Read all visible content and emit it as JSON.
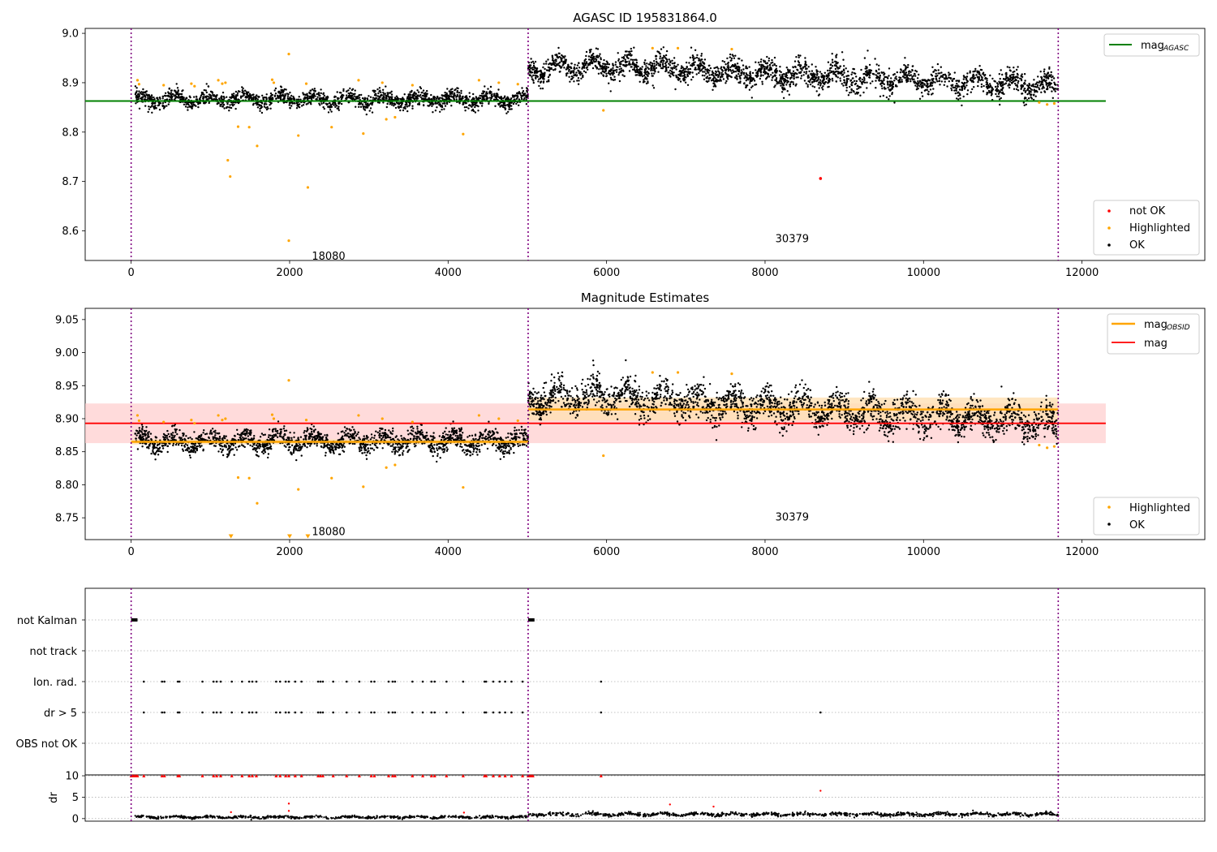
{
  "colors": {
    "ok": "#000000",
    "highlighted": "#ffa500",
    "not_ok": "#ff0000",
    "agasc_line": "#008000",
    "mag_line": "#ff0000",
    "mag_obsid_line": "#ffa500",
    "mag_band": "#ffcccc",
    "obsid_band": "#ffe0b3",
    "obs_boundary": "#800080",
    "grid": "#b0b0b0"
  },
  "chart_data": [
    {
      "type": "scatter",
      "title": "AGASC ID 195831864.0",
      "xlabel": "",
      "ylabel": "",
      "xlim": [
        -580,
        13550
      ],
      "ylim": [
        8.54,
        9.01
      ],
      "x_ticks": [
        0,
        2000,
        4000,
        6000,
        8000,
        10000,
        12000
      ],
      "y_ticks": [
        8.6,
        8.7,
        8.8,
        8.9,
        9.0
      ],
      "observation_boundaries": [
        0,
        5010,
        11700
      ],
      "observations": [
        {
          "obsid": "18080",
          "x_start": 0,
          "x_end": 5010,
          "label_at": [
            2280,
            8.55
          ]
        },
        {
          "obsid": "30379",
          "x_start": 5010,
          "x_end": 11700,
          "label_at": [
            8130,
            8.585
          ]
        }
      ],
      "reference_lines": [
        {
          "name": "mag_{AGASC}",
          "legend_label_main": "mag",
          "legend_label_sub": "AGASC",
          "y": 8.863,
          "x": [
            -580,
            12300
          ]
        }
      ],
      "series": [
        {
          "name": "OK",
          "kind": "dense-scatter",
          "segments": [
            {
              "x": [
                50,
                5010
              ],
              "center": 8.866,
              "spread": 0.014
            },
            {
              "x": [
                5010,
                11700
              ],
              "center": [
                8.926,
                8.935,
                8.93,
                8.92,
                8.915,
                8.91,
                8.905,
                8.9,
                8.892
              ],
              "spread": 0.022
            }
          ]
        },
        {
          "name": "Highlighted",
          "kind": "points",
          "points": [
            [
              80,
              8.905
            ],
            [
              100,
              8.897
            ],
            [
              410,
              8.895
            ],
            [
              760,
              8.898
            ],
            [
              800,
              8.893
            ],
            [
              1100,
              8.905
            ],
            [
              1150,
              8.898
            ],
            [
              1190,
              8.9
            ],
            [
              1220,
              8.743
            ],
            [
              1250,
              8.71
            ],
            [
              1350,
              8.811
            ],
            [
              1490,
              8.81
            ],
            [
              1590,
              8.772
            ],
            [
              1780,
              8.906
            ],
            [
              1800,
              8.9
            ],
            [
              1990,
              8.958
            ],
            [
              1990,
              8.58
            ],
            [
              2110,
              8.793
            ],
            [
              2210,
              8.898
            ],
            [
              2230,
              8.688
            ],
            [
              2530,
              8.81
            ],
            [
              2870,
              8.905
            ],
            [
              2930,
              8.797
            ],
            [
              3170,
              8.9
            ],
            [
              3220,
              8.826
            ],
            [
              3330,
              8.83
            ],
            [
              3550,
              8.895
            ],
            [
              4190,
              8.796
            ],
            [
              4390,
              8.905
            ],
            [
              4640,
              8.9
            ],
            [
              4880,
              8.897
            ],
            [
              5960,
              8.844
            ],
            [
              6580,
              8.97
            ],
            [
              6900,
              8.97
            ],
            [
              7580,
              8.968
            ],
            [
              11460,
              8.86
            ],
            [
              11560,
              8.856
            ],
            [
              11650,
              8.858
            ]
          ]
        },
        {
          "name": "not OK",
          "kind": "points",
          "points": [
            [
              8700,
              8.706
            ]
          ]
        }
      ],
      "legend": {
        "placement": "lower right",
        "entries": [
          "not OK",
          "Highlighted",
          "OK"
        ]
      },
      "line_legend": {
        "placement": "upper right"
      }
    },
    {
      "type": "scatter",
      "title": "Magnitude Estimates",
      "xlabel": "",
      "ylabel": "",
      "xlim": [
        -580,
        13550
      ],
      "ylim": [
        8.717,
        9.067
      ],
      "x_ticks": [
        0,
        2000,
        4000,
        6000,
        8000,
        10000,
        12000
      ],
      "y_ticks": [
        8.75,
        8.8,
        8.85,
        8.9,
        8.95,
        9.0,
        9.05
      ],
      "observation_boundaries": [
        0,
        5010,
        11700
      ],
      "observations": [
        {
          "obsid": "18080",
          "label_at": [
            2280,
            8.73
          ]
        },
        {
          "obsid": "30379",
          "label_at": [
            8130,
            8.752
          ]
        }
      ],
      "reference_lines": [
        {
          "name": "mag",
          "legend_label_main": "mag",
          "y": 8.893,
          "x": [
            -580,
            12300
          ],
          "band": [
            8.863,
            8.923
          ]
        },
        {
          "name": "mag_{OBSID}",
          "legend_label_main": "mag",
          "legend_label_sub": "OBSID",
          "segments": [
            {
              "x": [
                0,
                5010
              ],
              "y": 8.865,
              "band": [
                8.861,
                8.869
              ]
            },
            {
              "x": [
                5010,
                11700
              ],
              "y": 8.914,
              "band": [
                8.897,
                8.932
              ]
            }
          ]
        }
      ],
      "series": [
        {
          "name": "OK",
          "kind": "dense-scatter",
          "segments": [
            {
              "x": [
                50,
                5010
              ],
              "center": 8.866,
              "spread": 0.014
            },
            {
              "x": [
                5010,
                11700
              ],
              "center": [
                8.926,
                8.935,
                8.93,
                8.92,
                8.915,
                8.91,
                8.905,
                8.9,
                8.892
              ],
              "spread": 0.022
            }
          ]
        },
        {
          "name": "Highlighted",
          "kind": "points",
          "points": [
            [
              80,
              8.905
            ],
            [
              100,
              8.897
            ],
            [
              410,
              8.895
            ],
            [
              760,
              8.898
            ],
            [
              800,
              8.893
            ],
            [
              1100,
              8.905
            ],
            [
              1150,
              8.898
            ],
            [
              1190,
              8.9
            ],
            [
              1350,
              8.811
            ],
            [
              1490,
              8.81
            ],
            [
              1590,
              8.772
            ],
            [
              1780,
              8.906
            ],
            [
              1800,
              8.9
            ],
            [
              1990,
              8.958
            ],
            [
              2110,
              8.793
            ],
            [
              2210,
              8.898
            ],
            [
              2530,
              8.81
            ],
            [
              2870,
              8.905
            ],
            [
              2930,
              8.797
            ],
            [
              3170,
              8.9
            ],
            [
              3220,
              8.826
            ],
            [
              3330,
              8.83
            ],
            [
              3550,
              8.895
            ],
            [
              4190,
              8.796
            ],
            [
              4390,
              8.905
            ],
            [
              4640,
              8.9
            ],
            [
              4880,
              8.897
            ],
            [
              5960,
              8.844
            ],
            [
              6580,
              8.97
            ],
            [
              6900,
              8.97
            ],
            [
              7580,
              8.968
            ],
            [
              11460,
              8.86
            ],
            [
              11560,
              8.856
            ],
            [
              11650,
              8.858
            ]
          ]
        },
        {
          "name": "Highlighted (off-scale)",
          "kind": "markers",
          "points": [
            [
              1260,
              8.72
            ],
            [
              2000,
              8.72
            ],
            [
              2230,
              8.72
            ]
          ]
        }
      ],
      "legend": {
        "placement": "lower right",
        "entries": [
          "Highlighted",
          "OK"
        ]
      },
      "line_legend": {
        "placement": "upper right"
      }
    },
    {
      "type": "scatter",
      "title": "",
      "xlabel": "",
      "ylabel": "",
      "xlim": [
        -580,
        13550
      ],
      "categories": [
        "not Kalman",
        "not track",
        "Ion. rad.",
        "dr > 5",
        "OBS not OK"
      ],
      "observation_boundaries": [
        0,
        5010,
        11700
      ],
      "flag_points": {
        "not Kalman": [
          [
            0,
            80
          ],
          [
            5010,
            5090
          ]
        ],
        "not track": [],
        "Ion. rad.": [
          160,
          390,
          420,
          590,
          610,
          900,
          1040,
          1080,
          1130,
          1270,
          1400,
          1490,
          1530,
          1580,
          1830,
          1880,
          1950,
          1990,
          2070,
          2150,
          2360,
          2390,
          2420,
          2550,
          2720,
          2880,
          3030,
          3070,
          3250,
          3300,
          3330,
          3550,
          3680,
          3790,
          3830,
          3980,
          4190,
          4460,
          4480,
          4570,
          4650,
          4720,
          4800,
          4940,
          5930
        ],
        "dr > 5": [
          160,
          390,
          420,
          590,
          610,
          900,
          1040,
          1080,
          1130,
          1270,
          1400,
          1490,
          1530,
          1580,
          1830,
          1880,
          1950,
          1990,
          2070,
          2150,
          2360,
          2390,
          2420,
          2550,
          2720,
          2880,
          3030,
          3070,
          3250,
          3300,
          3330,
          3550,
          3680,
          3790,
          3830,
          3980,
          4190,
          4460,
          4480,
          4570,
          4650,
          4720,
          4800,
          4940,
          5930,
          8700
        ],
        "OBS not OK": []
      }
    },
    {
      "type": "scatter",
      "title": "",
      "xlabel": "",
      "ylabel": "dr",
      "xlim": [
        -580,
        13550
      ],
      "ylim": [
        -0.6,
        10.2
      ],
      "y_ticks": [
        0,
        5,
        10
      ],
      "observation_boundaries": [
        0,
        5010,
        11700
      ],
      "series": [
        {
          "name": "dr",
          "kind": "dense-scatter",
          "segments": [
            {
              "x": [
                50,
                5010
              ],
              "center": 0.35,
              "spread": 0.25
            },
            {
              "x": [
                5010,
                11700
              ],
              "center": 1.0,
              "spread": 0.35
            }
          ]
        },
        {
          "name": "dr clipped",
          "kind": "markers",
          "x": [
            0,
            20,
            40,
            60,
            80,
            160,
            390,
            420,
            590,
            610,
            900,
            1040,
            1080,
            1130,
            1270,
            1400,
            1490,
            1530,
            1580,
            1830,
            1880,
            1950,
            1990,
            2070,
            2150,
            2360,
            2390,
            2420,
            2550,
            2720,
            2880,
            3030,
            3070,
            3250,
            3300,
            3330,
            3550,
            3680,
            3790,
            3830,
            3980,
            4190,
            4460,
            4480,
            4570,
            4650,
            4720,
            4800,
            4940,
            5010,
            5030,
            5050,
            5070,
            5930
          ],
          "y": 10
        },
        {
          "name": "dr outliers",
          "kind": "points",
          "points": [
            [
              1990,
              3.5
            ],
            [
              1990,
              1.8
            ],
            [
              6800,
              3.3
            ],
            [
              7350,
              2.8
            ],
            [
              8700,
              6.5
            ],
            [
              1260,
              1.5
            ],
            [
              4200,
              1.4
            ]
          ]
        }
      ]
    }
  ]
}
